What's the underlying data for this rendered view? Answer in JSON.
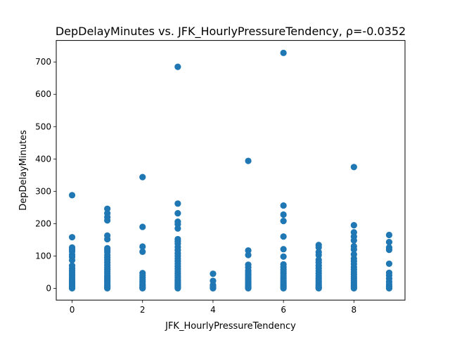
{
  "chart_data": {
    "type": "scatter",
    "title": "DepDelayMinutes vs. JFK_HourlyPressureTendency, ρ=-0.0352",
    "xlabel": "JFK_HourlyPressureTendency",
    "ylabel": "DepDelayMinutes",
    "xlim": [
      -0.45,
      9.45
    ],
    "ylim": [
      -36.5,
      766.5
    ],
    "xticks": [
      0,
      2,
      4,
      6,
      8
    ],
    "yticks": [
      0,
      100,
      200,
      300,
      400,
      500,
      600,
      700
    ],
    "grid": false,
    "marker_color": "#1f77b4",
    "series": [
      {
        "points": [
          {
            "x": 0,
            "y": 288
          },
          {
            "x": 0,
            "y": 158
          },
          {
            "x": 0,
            "y": 126
          },
          {
            "x": 0,
            "y": 120
          },
          {
            "x": 0,
            "y": 114
          },
          {
            "x": 0,
            "y": 104
          },
          {
            "x": 0,
            "y": 97
          },
          {
            "x": 0,
            "y": 87
          },
          {
            "x": 0,
            "y": 70
          },
          {
            "x": 0,
            "y": 62
          },
          {
            "x": 0,
            "y": 55
          },
          {
            "x": 0,
            "y": 48
          },
          {
            "x": 0,
            "y": 42
          },
          {
            "x": 0,
            "y": 36
          },
          {
            "x": 0,
            "y": 30
          },
          {
            "x": 0,
            "y": 25
          },
          {
            "x": 0,
            "y": 20
          },
          {
            "x": 0,
            "y": 16
          },
          {
            "x": 0,
            "y": 12
          },
          {
            "x": 0,
            "y": 8
          },
          {
            "x": 0,
            "y": 5
          },
          {
            "x": 0,
            "y": 2
          },
          {
            "x": 0,
            "y": 0
          },
          {
            "x": 1,
            "y": 246
          },
          {
            "x": 1,
            "y": 232
          },
          {
            "x": 1,
            "y": 220
          },
          {
            "x": 1,
            "y": 210
          },
          {
            "x": 1,
            "y": 163
          },
          {
            "x": 1,
            "y": 152
          },
          {
            "x": 1,
            "y": 124
          },
          {
            "x": 1,
            "y": 118
          },
          {
            "x": 1,
            "y": 112
          },
          {
            "x": 1,
            "y": 103
          },
          {
            "x": 1,
            "y": 95
          },
          {
            "x": 1,
            "y": 88
          },
          {
            "x": 1,
            "y": 80
          },
          {
            "x": 1,
            "y": 72
          },
          {
            "x": 1,
            "y": 65
          },
          {
            "x": 1,
            "y": 58
          },
          {
            "x": 1,
            "y": 52
          },
          {
            "x": 1,
            "y": 46
          },
          {
            "x": 1,
            "y": 40
          },
          {
            "x": 1,
            "y": 35
          },
          {
            "x": 1,
            "y": 30
          },
          {
            "x": 1,
            "y": 25
          },
          {
            "x": 1,
            "y": 20
          },
          {
            "x": 1,
            "y": 15
          },
          {
            "x": 1,
            "y": 10
          },
          {
            "x": 1,
            "y": 6
          },
          {
            "x": 1,
            "y": 3
          },
          {
            "x": 1,
            "y": 0
          },
          {
            "x": 2,
            "y": 344
          },
          {
            "x": 2,
            "y": 190
          },
          {
            "x": 2,
            "y": 129
          },
          {
            "x": 2,
            "y": 113
          },
          {
            "x": 2,
            "y": 47
          },
          {
            "x": 2,
            "y": 40
          },
          {
            "x": 2,
            "y": 33
          },
          {
            "x": 2,
            "y": 26
          },
          {
            "x": 2,
            "y": 20
          },
          {
            "x": 2,
            "y": 14
          },
          {
            "x": 2,
            "y": 9
          },
          {
            "x": 2,
            "y": 5
          },
          {
            "x": 2,
            "y": 2
          },
          {
            "x": 2,
            "y": 0
          },
          {
            "x": 3,
            "y": 685
          },
          {
            "x": 3,
            "y": 262
          },
          {
            "x": 3,
            "y": 232
          },
          {
            "x": 3,
            "y": 206
          },
          {
            "x": 3,
            "y": 198
          },
          {
            "x": 3,
            "y": 185
          },
          {
            "x": 3,
            "y": 152
          },
          {
            "x": 3,
            "y": 145
          },
          {
            "x": 3,
            "y": 138
          },
          {
            "x": 3,
            "y": 128
          },
          {
            "x": 3,
            "y": 118
          },
          {
            "x": 3,
            "y": 108
          },
          {
            "x": 3,
            "y": 100
          },
          {
            "x": 3,
            "y": 92
          },
          {
            "x": 3,
            "y": 84
          },
          {
            "x": 3,
            "y": 76
          },
          {
            "x": 3,
            "y": 68
          },
          {
            "x": 3,
            "y": 60
          },
          {
            "x": 3,
            "y": 53
          },
          {
            "x": 3,
            "y": 46
          },
          {
            "x": 3,
            "y": 40
          },
          {
            "x": 3,
            "y": 34
          },
          {
            "x": 3,
            "y": 28
          },
          {
            "x": 3,
            "y": 23
          },
          {
            "x": 3,
            "y": 18
          },
          {
            "x": 3,
            "y": 14
          },
          {
            "x": 3,
            "y": 10
          },
          {
            "x": 3,
            "y": 6
          },
          {
            "x": 3,
            "y": 3
          },
          {
            "x": 3,
            "y": 0
          },
          {
            "x": 4,
            "y": 45
          },
          {
            "x": 4,
            "y": 23
          },
          {
            "x": 4,
            "y": 10
          },
          {
            "x": 4,
            "y": 5
          },
          {
            "x": 4,
            "y": 2
          },
          {
            "x": 4,
            "y": 0
          },
          {
            "x": 5,
            "y": 394
          },
          {
            "x": 5,
            "y": 117
          },
          {
            "x": 5,
            "y": 103
          },
          {
            "x": 5,
            "y": 73
          },
          {
            "x": 5,
            "y": 65
          },
          {
            "x": 5,
            "y": 55
          },
          {
            "x": 5,
            "y": 48
          },
          {
            "x": 5,
            "y": 42
          },
          {
            "x": 5,
            "y": 36
          },
          {
            "x": 5,
            "y": 30
          },
          {
            "x": 5,
            "y": 25
          },
          {
            "x": 5,
            "y": 20
          },
          {
            "x": 5,
            "y": 15
          },
          {
            "x": 5,
            "y": 11
          },
          {
            "x": 5,
            "y": 7
          },
          {
            "x": 5,
            "y": 4
          },
          {
            "x": 5,
            "y": 2
          },
          {
            "x": 5,
            "y": 0
          },
          {
            "x": 6,
            "y": 728
          },
          {
            "x": 6,
            "y": 256
          },
          {
            "x": 6,
            "y": 228
          },
          {
            "x": 6,
            "y": 208
          },
          {
            "x": 6,
            "y": 160
          },
          {
            "x": 6,
            "y": 121
          },
          {
            "x": 6,
            "y": 98
          },
          {
            "x": 6,
            "y": 74
          },
          {
            "x": 6,
            "y": 66
          },
          {
            "x": 6,
            "y": 58
          },
          {
            "x": 6,
            "y": 51
          },
          {
            "x": 6,
            "y": 45
          },
          {
            "x": 6,
            "y": 39
          },
          {
            "x": 6,
            "y": 33
          },
          {
            "x": 6,
            "y": 28
          },
          {
            "x": 6,
            "y": 23
          },
          {
            "x": 6,
            "y": 18
          },
          {
            "x": 6,
            "y": 14
          },
          {
            "x": 6,
            "y": 10
          },
          {
            "x": 6,
            "y": 6
          },
          {
            "x": 6,
            "y": 3
          },
          {
            "x": 6,
            "y": 0
          },
          {
            "x": 7,
            "y": 134
          },
          {
            "x": 7,
            "y": 127
          },
          {
            "x": 7,
            "y": 112
          },
          {
            "x": 7,
            "y": 103
          },
          {
            "x": 7,
            "y": 88
          },
          {
            "x": 7,
            "y": 80
          },
          {
            "x": 7,
            "y": 70
          },
          {
            "x": 7,
            "y": 62
          },
          {
            "x": 7,
            "y": 54
          },
          {
            "x": 7,
            "y": 46
          },
          {
            "x": 7,
            "y": 38
          },
          {
            "x": 7,
            "y": 31
          },
          {
            "x": 7,
            "y": 25
          },
          {
            "x": 7,
            "y": 19
          },
          {
            "x": 7,
            "y": 14
          },
          {
            "x": 7,
            "y": 9
          },
          {
            "x": 7,
            "y": 5
          },
          {
            "x": 7,
            "y": 2
          },
          {
            "x": 7,
            "y": 0
          },
          {
            "x": 8,
            "y": 375
          },
          {
            "x": 8,
            "y": 195
          },
          {
            "x": 8,
            "y": 173
          },
          {
            "x": 8,
            "y": 160
          },
          {
            "x": 8,
            "y": 148
          },
          {
            "x": 8,
            "y": 130
          },
          {
            "x": 8,
            "y": 120
          },
          {
            "x": 8,
            "y": 105
          },
          {
            "x": 8,
            "y": 92
          },
          {
            "x": 8,
            "y": 84
          },
          {
            "x": 8,
            "y": 75
          },
          {
            "x": 8,
            "y": 66
          },
          {
            "x": 8,
            "y": 58
          },
          {
            "x": 8,
            "y": 50
          },
          {
            "x": 8,
            "y": 43
          },
          {
            "x": 8,
            "y": 36
          },
          {
            "x": 8,
            "y": 30
          },
          {
            "x": 8,
            "y": 24
          },
          {
            "x": 8,
            "y": 18
          },
          {
            "x": 8,
            "y": 13
          },
          {
            "x": 8,
            "y": 8
          },
          {
            "x": 8,
            "y": 4
          },
          {
            "x": 8,
            "y": 0
          },
          {
            "x": 9,
            "y": 165
          },
          {
            "x": 9,
            "y": 143
          },
          {
            "x": 9,
            "y": 126
          },
          {
            "x": 9,
            "y": 119
          },
          {
            "x": 9,
            "y": 76
          },
          {
            "x": 9,
            "y": 48
          },
          {
            "x": 9,
            "y": 40
          },
          {
            "x": 9,
            "y": 30
          },
          {
            "x": 9,
            "y": 20
          },
          {
            "x": 9,
            "y": 12
          },
          {
            "x": 9,
            "y": 6
          },
          {
            "x": 9,
            "y": 2
          },
          {
            "x": 9,
            "y": 0
          }
        ]
      }
    ]
  }
}
